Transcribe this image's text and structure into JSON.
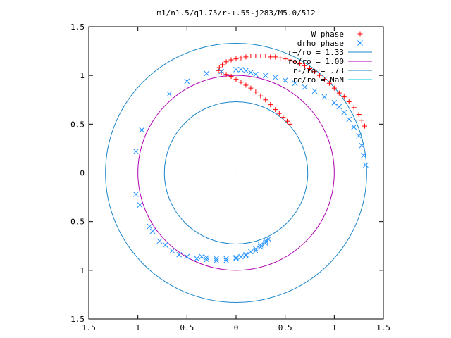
{
  "chart_data": {
    "type": "scatter",
    "title": "m1/n1.5/q1.75/r-+.55-j283/M5.0/512",
    "xlim": [
      -1.5,
      1.5
    ],
    "ylim": [
      -1.5,
      1.5
    ],
    "x_ticks": [
      -1.5,
      -1,
      -0.5,
      0,
      0.5,
      1,
      1.5
    ],
    "y_ticks": [
      -1.5,
      -1,
      -0.5,
      0,
      0.5,
      1,
      1.5
    ],
    "x_tick_labels": [
      "1.5",
      "1",
      "0.5",
      "0",
      "0.5",
      "1",
      "1.5"
    ],
    "y_tick_labels": [
      "1.5",
      "1",
      "0.5",
      "0",
      "0.5",
      "1",
      "1.5"
    ],
    "grid": false,
    "legend_position": "top-right",
    "colors": {
      "w_phase": "#ff0000",
      "drho_phase": "#1e90ff",
      "r_plus": "#1a85c8",
      "r_o": "#b000b0",
      "r_minus": "#1a85c8",
      "r_c": "#00c8e0"
    },
    "series": [
      {
        "name": "W phase",
        "marker": "+",
        "color": "#ff0000",
        "points": [
          [
            0.55,
            0.5
          ],
          [
            0.52,
            0.53
          ],
          [
            0.48,
            0.57
          ],
          [
            0.44,
            0.61
          ],
          [
            0.4,
            0.65
          ],
          [
            0.35,
            0.7
          ],
          [
            0.3,
            0.75
          ],
          [
            0.25,
            0.79
          ],
          [
            0.2,
            0.83
          ],
          [
            0.15,
            0.87
          ],
          [
            0.1,
            0.9
          ],
          [
            0.05,
            0.93
          ],
          [
            0.0,
            0.96
          ],
          [
            -0.05,
            0.99
          ],
          [
            -0.1,
            1.01
          ],
          [
            -0.15,
            1.03
          ],
          [
            -0.18,
            1.05
          ],
          [
            -0.17,
            1.08
          ],
          [
            -0.14,
            1.11
          ],
          [
            -0.1,
            1.14
          ],
          [
            -0.05,
            1.16
          ],
          [
            0.0,
            1.17
          ],
          [
            0.05,
            1.18
          ],
          [
            0.1,
            1.19
          ],
          [
            0.15,
            1.2
          ],
          [
            0.2,
            1.2
          ],
          [
            0.25,
            1.2
          ],
          [
            0.3,
            1.2
          ],
          [
            0.35,
            1.19
          ],
          [
            0.4,
            1.19
          ],
          [
            0.45,
            1.18
          ],
          [
            0.5,
            1.17
          ],
          [
            0.55,
            1.16
          ],
          [
            0.6,
            1.14
          ],
          [
            0.65,
            1.12
          ],
          [
            0.7,
            1.1
          ],
          [
            0.75,
            1.07
          ],
          [
            0.8,
            1.04
          ],
          [
            0.85,
            1.0
          ],
          [
            0.9,
            0.96
          ],
          [
            0.95,
            0.92
          ],
          [
            1.0,
            0.87
          ],
          [
            1.05,
            0.82
          ],
          [
            1.1,
            0.78
          ],
          [
            1.15,
            0.73
          ],
          [
            1.2,
            0.67
          ],
          [
            1.25,
            0.6
          ],
          [
            1.28,
            0.54
          ],
          [
            1.31,
            0.48
          ]
        ]
      },
      {
        "name": "drho phase",
        "marker": "x",
        "color": "#1e90ff",
        "points": [
          [
            -1.02,
            0.22
          ],
          [
            -0.96,
            0.44
          ],
          [
            -0.68,
            0.81
          ],
          [
            -0.5,
            0.94
          ],
          [
            -0.3,
            1.02
          ],
          [
            -0.15,
            1.04
          ],
          [
            0.0,
            1.06
          ],
          [
            0.05,
            1.06
          ],
          [
            0.1,
            1.05
          ],
          [
            0.15,
            1.03
          ],
          [
            0.2,
            1.01
          ],
          [
            0.3,
            1.0
          ],
          [
            0.4,
            0.98
          ],
          [
            0.5,
            0.95
          ],
          [
            0.6,
            0.92
          ],
          [
            0.7,
            0.88
          ],
          [
            0.8,
            0.84
          ],
          [
            0.9,
            0.78
          ],
          [
            1.0,
            0.72
          ],
          [
            1.05,
            0.68
          ],
          [
            1.1,
            0.62
          ],
          [
            1.15,
            0.55
          ],
          [
            1.2,
            0.47
          ],
          [
            1.25,
            0.38
          ],
          [
            1.28,
            0.28
          ],
          [
            1.3,
            0.18
          ],
          [
            1.32,
            0.08
          ],
          [
            -1.02,
            -0.22
          ],
          [
            -0.98,
            -0.33
          ],
          [
            -0.88,
            -0.55
          ],
          [
            -0.85,
            -0.6
          ],
          [
            -0.78,
            -0.7
          ],
          [
            -0.72,
            -0.74
          ],
          [
            -0.65,
            -0.8
          ],
          [
            -0.58,
            -0.84
          ],
          [
            -0.5,
            -0.86
          ],
          [
            -0.4,
            -0.88
          ],
          [
            -0.3,
            -0.89
          ],
          [
            -0.2,
            -0.9
          ],
          [
            -0.1,
            -0.9
          ],
          [
            0.0,
            -0.88
          ],
          [
            0.05,
            -0.86
          ],
          [
            0.1,
            -0.84
          ],
          [
            0.15,
            -0.81
          ],
          [
            0.2,
            -0.78
          ],
          [
            0.25,
            -0.74
          ],
          [
            0.3,
            -0.7
          ],
          [
            0.33,
            -0.68
          ],
          [
            0.3,
            -0.72
          ],
          [
            0.25,
            -0.76
          ],
          [
            0.2,
            -0.8
          ],
          [
            0.1,
            -0.85
          ],
          [
            0.0,
            -0.87
          ],
          [
            -0.1,
            -0.88
          ],
          [
            -0.2,
            -0.88
          ],
          [
            -0.3,
            -0.87
          ],
          [
            -0.35,
            -0.86
          ]
        ]
      }
    ],
    "circles": [
      {
        "name": "r+/ro = 1.33",
        "radius": 1.33,
        "color": "#1a85c8"
      },
      {
        "name": "ro/ro = 1.00",
        "radius": 1.0,
        "color": "#b000b0"
      },
      {
        "name": "r-/ro = .73",
        "radius": 0.73,
        "color": "#1a85c8"
      },
      {
        "name": "rc/ro = NaN",
        "radius": null,
        "color": "#00c8e0"
      }
    ]
  }
}
